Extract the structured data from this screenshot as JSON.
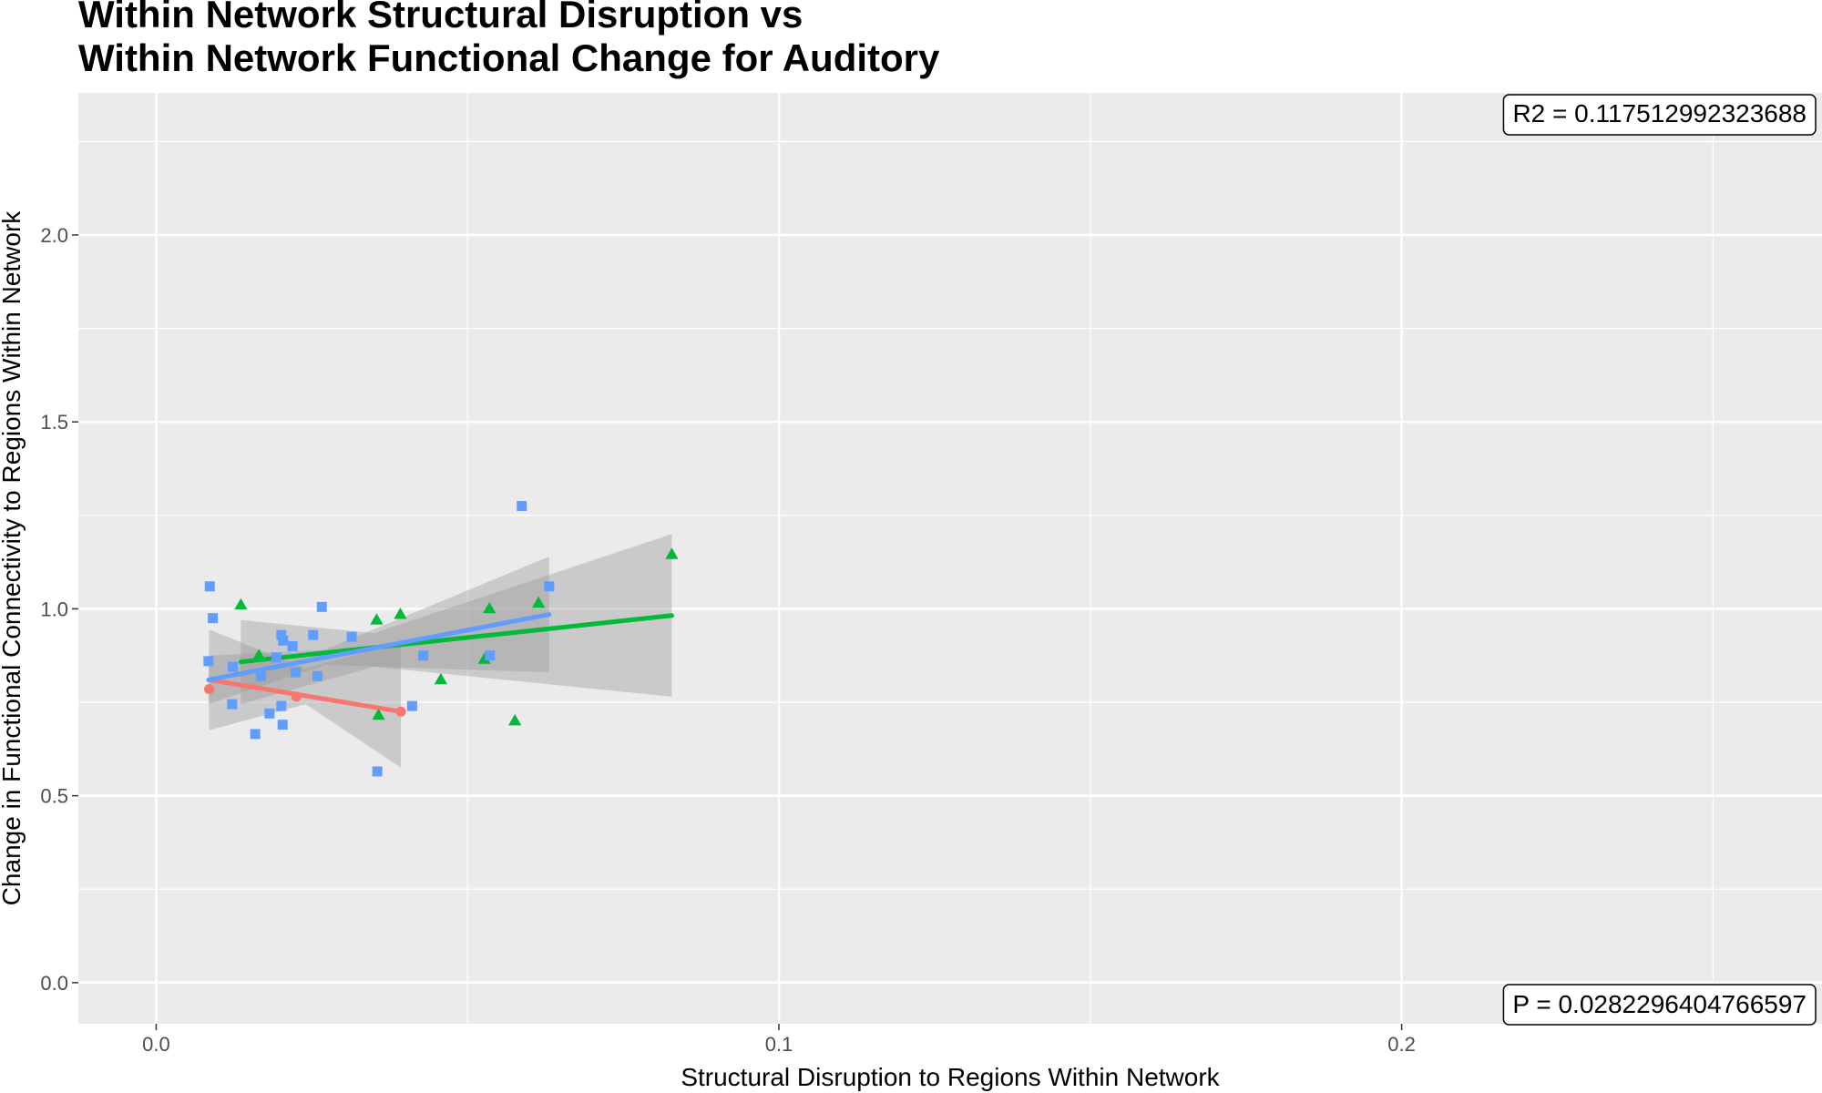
{
  "chart_data": {
    "type": "scatter",
    "title_lines": [
      "Within Network Structural Disruption vs",
      "Within Network Functional Change for Auditory"
    ],
    "xlabel": "Structural Disruption to Regions Within Network",
    "ylabel": "Change in Functional Connectivity to Regions Within Network",
    "xlim": [
      -0.0125,
      0.2675
    ],
    "ylim": [
      -0.11,
      2.38
    ],
    "x_ticks": [
      0.0,
      0.1,
      0.2
    ],
    "x_tick_labels": [
      "0.0",
      "0.1",
      "0.2"
    ],
    "x_minor_ticks": [
      0.05,
      0.15,
      0.25
    ],
    "y_ticks": [
      0.0,
      0.5,
      1.0,
      1.5,
      2.0
    ],
    "y_tick_labels": [
      "0.0",
      "0.5",
      "1.0",
      "1.5",
      "2.0"
    ],
    "y_minor_ticks": [
      0.25,
      0.75,
      1.25,
      1.75,
      2.25
    ],
    "grid": true,
    "legend": "none",
    "colors": {
      "panel_bg": "#ebebeb",
      "grid": "#ffffff",
      "ribbon": "#999999"
    },
    "annotations": [
      {
        "text": "R2 =  0.117512992323688",
        "position": "top-right"
      },
      {
        "text": "P =  0.0282296404766597",
        "position": "bottom-right"
      }
    ],
    "series": [
      {
        "marker": "circle",
        "color": "#f8766d",
        "points": [
          [
            0.0085,
            0.785
          ],
          [
            0.0225,
            0.765
          ],
          [
            0.0393,
            0.725
          ]
        ],
        "fit": {
          "x": [
            0.0085,
            0.0393
          ],
          "y": [
            0.81,
            0.725
          ]
        },
        "band": {
          "x": [
            0.0085,
            0.024,
            0.0393
          ],
          "upper": [
            0.945,
            0.84,
            0.91
          ],
          "lower": [
            0.675,
            0.745,
            0.575
          ]
        }
      },
      {
        "marker": "triangle",
        "color": "#00ba38",
        "points": [
          [
            0.0136,
            1.01
          ],
          [
            0.0165,
            0.875
          ],
          [
            0.0354,
            0.97
          ],
          [
            0.0392,
            0.985
          ],
          [
            0.0357,
            0.715
          ],
          [
            0.0457,
            0.81
          ],
          [
            0.0527,
            0.865
          ],
          [
            0.0535,
            1.0
          ],
          [
            0.0576,
            0.7
          ],
          [
            0.0614,
            1.015
          ],
          [
            0.0828,
            1.145
          ]
        ],
        "fit": {
          "x": [
            0.0136,
            0.0828
          ],
          "y": [
            0.858,
            0.982
          ]
        },
        "band": {
          "x": [
            0.0136,
            0.035,
            0.0828
          ],
          "upper": [
            0.97,
            0.935,
            1.2
          ],
          "lower": [
            0.745,
            0.845,
            0.765
          ]
        }
      },
      {
        "marker": "square",
        "color": "#619cff",
        "points": [
          [
            0.0086,
            1.06
          ],
          [
            0.0091,
            0.975
          ],
          [
            0.0084,
            0.86
          ],
          [
            0.0123,
            0.845
          ],
          [
            0.0122,
            0.745
          ],
          [
            0.0159,
            0.665
          ],
          [
            0.0168,
            0.82
          ],
          [
            0.0182,
            0.72
          ],
          [
            0.0193,
            0.87
          ],
          [
            0.0201,
            0.74
          ],
          [
            0.0201,
            0.93
          ],
          [
            0.0204,
            0.915
          ],
          [
            0.0203,
            0.69
          ],
          [
            0.0219,
            0.9
          ],
          [
            0.0224,
            0.83
          ],
          [
            0.0252,
            0.93
          ],
          [
            0.0259,
            0.82
          ],
          [
            0.0266,
            1.005
          ],
          [
            0.0314,
            0.925
          ],
          [
            0.0355,
            0.565
          ],
          [
            0.0411,
            0.74
          ],
          [
            0.0429,
            0.875
          ],
          [
            0.0536,
            0.875
          ],
          [
            0.0587,
            1.275
          ],
          [
            0.0631,
            1.06
          ]
        ],
        "fit": {
          "x": [
            0.0084,
            0.0631
          ],
          "y": [
            0.81,
            0.985
          ]
        },
        "band": {
          "x": [
            0.0084,
            0.027,
            0.0631
          ],
          "upper": [
            0.875,
            0.89,
            1.14
          ],
          "lower": [
            0.745,
            0.85,
            0.83
          ]
        }
      }
    ]
  }
}
